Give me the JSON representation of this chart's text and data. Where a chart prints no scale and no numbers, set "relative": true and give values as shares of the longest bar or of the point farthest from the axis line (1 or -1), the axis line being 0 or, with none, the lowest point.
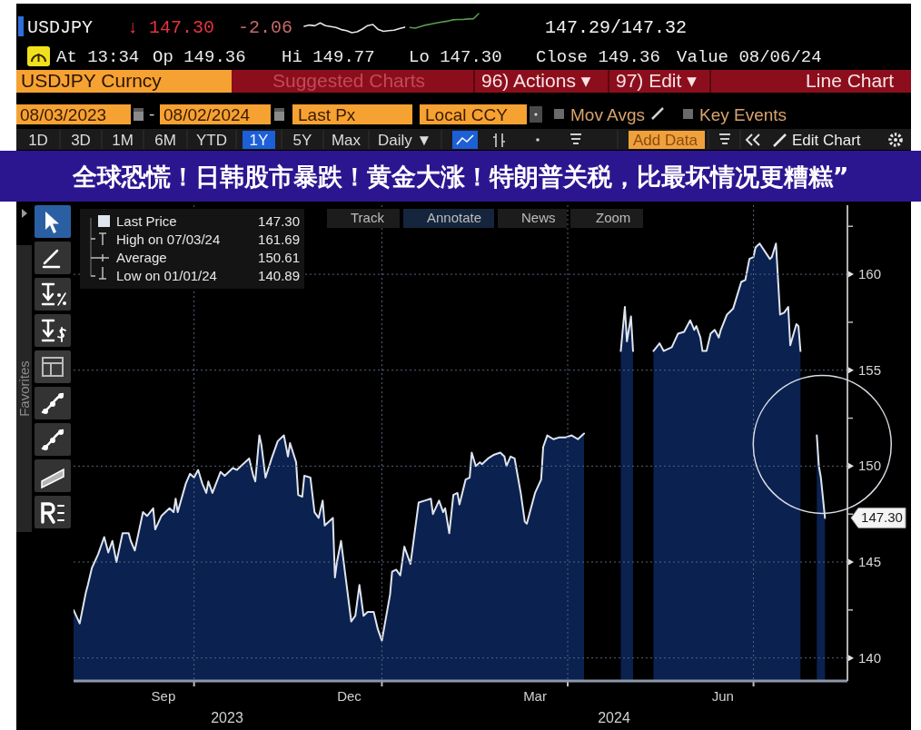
{
  "chart_data": [
    {
      "type": "area",
      "title": "全球恐慌！日韩股市暴跌！黄金大涨！特朗普关税，比最坏情况更糟糕”",
      "x": [
        "2023-08-03",
        "2023-08-06",
        "2023-08-09",
        "2023-08-10",
        "2023-08-12",
        "2023-08-15",
        "2023-08-18",
        "2023-08-20",
        "2023-08-22",
        "2023-08-24",
        "2023-08-27",
        "2023-08-30",
        "2023-08-31",
        "2023-09-02",
        "2023-09-06",
        "2023-09-08",
        "2023-09-11",
        "2023-09-12",
        "2023-09-15",
        "2023-09-19",
        "2023-09-21",
        "2023-09-22",
        "2023-09-23",
        "2023-09-27",
        "2023-09-29",
        "2023-10-01",
        "2023-10-03",
        "2023-10-05",
        "2023-10-07",
        "2023-10-08",
        "2023-10-10",
        "2023-10-14",
        "2023-10-16",
        "2023-10-20",
        "2023-10-22",
        "2023-10-24",
        "2023-10-28",
        "2023-10-30",
        "2023-10-31",
        "2023-11-02",
        "2023-11-03",
        "2023-11-05",
        "2023-11-08",
        "2023-11-11",
        "2023-11-14",
        "2023-11-16",
        "2023-11-17",
        "2023-11-20",
        "2023-11-21",
        "2023-11-23",
        "2023-11-24",
        "2023-11-27",
        "2023-11-29",
        "2023-12-01",
        "2023-12-03",
        "2023-12-04",
        "2023-12-08",
        "2023-12-09",
        "2023-12-10",
        "2023-12-12",
        "2023-12-14",
        "2023-12-17",
        "2023-12-19",
        "2023-12-21",
        "2023-12-23",
        "2023-12-25",
        "2023-12-28",
        "2023-12-30",
        "2024-01-01",
        "2024-01-05",
        "2024-01-06",
        "2024-01-08",
        "2024-01-10",
        "2024-01-12",
        "2024-01-15",
        "2024-01-19",
        "2024-01-22",
        "2024-01-25",
        "2024-01-26",
        "2024-01-29",
        "2024-01-31",
        "2024-02-01",
        "2024-02-03",
        "2024-02-05",
        "2024-02-07",
        "2024-02-08",
        "2024-02-11",
        "2024-02-13",
        "2024-02-14",
        "2024-02-16",
        "2024-02-18",
        "2024-02-19",
        "2024-02-22",
        "2024-02-25",
        "2024-02-28",
        "2024-03-01",
        "2024-03-02",
        "2024-03-04",
        "2024-03-06",
        "2024-03-09",
        "2024-03-11",
        "2024-03-12",
        "2024-03-14",
        "2024-03-16",
        "2024-03-19",
        "2024-03-20",
        "2024-03-22",
        "2024-03-25",
        "2024-03-28",
        "2024-03-31",
        "2024-04-03",
        "2024-04-06",
        "2024-04-09",
        "2024-04-18",
        "2024-04-27",
        "2024-04-29",
        "2024-04-30",
        "2024-05-02",
        "2024-05-03",
        "2024-05-08",
        "2024-05-13",
        "2024-05-16",
        "2024-05-18",
        "2024-05-22",
        "2024-05-25",
        "2024-05-28",
        "2024-05-31",
        "2024-06-02",
        "2024-06-03",
        "2024-06-05",
        "2024-06-06",
        "2024-06-08",
        "2024-06-10",
        "2024-06-12",
        "2024-06-14",
        "2024-06-15",
        "2024-06-18",
        "2024-06-21",
        "2024-06-25",
        "2024-06-27",
        "2024-06-29",
        "2024-07-01",
        "2024-07-02",
        "2024-07-04",
        "2024-07-09",
        "2024-07-10",
        "2024-07-12",
        "2024-07-14",
        "2024-07-16",
        "2024-07-18",
        "2024-07-19",
        "2024-07-22",
        "2024-07-23",
        "2024-07-24",
        "2024-07-28",
        "2024-08-01",
        "2024-08-02",
        "2024-08-03",
        "2024-08-05"
      ],
      "series": [
        {
          "name": "Last Price",
          "color": "#dfe5ee",
          "values": [
            142.5,
            141.8,
            143.4,
            143.8,
            144.7,
            145.4,
            146.3,
            145.5,
            146.1,
            145.0,
            146.5,
            146.5,
            146.1,
            145.6,
            147.6,
            147.4,
            147.8,
            146.7,
            147.4,
            147.8,
            147.6,
            148.3,
            147.6,
            149.1,
            149.6,
            149.4,
            149.8,
            149.1,
            148.6,
            149.2,
            148.6,
            149.7,
            149.5,
            149.9,
            149.8,
            150.0,
            150.4,
            149.5,
            149.2,
            151.6,
            151.1,
            149.4,
            150.4,
            151.3,
            151.6,
            150.5,
            151.2,
            150.2,
            148.5,
            148.4,
            149.5,
            149.4,
            147.6,
            147.3,
            148.2,
            146.9,
            147.3,
            144.2,
            145.0,
            146.1,
            144.4,
            141.9,
            142.2,
            143.8,
            142.2,
            142.4,
            142.4,
            141.5,
            140.9,
            143.3,
            144.5,
            144.6,
            144.3,
            145.8,
            144.9,
            148.1,
            148.2,
            148.3,
            147.5,
            148.2,
            147.6,
            147.8,
            146.5,
            148.5,
            148.6,
            148.0,
            149.3,
            149.4,
            150.7,
            150.0,
            150.2,
            150.1,
            150.4,
            150.6,
            150.7,
            150.5,
            150.0,
            150.5,
            150.4,
            148.6,
            147.1,
            147.0,
            147.8,
            148.6,
            149.3,
            151.0,
            151.6,
            151.4,
            151.5,
            151.5,
            151.6,
            151.4,
            151.7,
            null,
            156.0,
            158.3,
            156.5,
            157.8,
            156.0,
            null,
            156.0,
            156.4,
            156.0,
            156.2,
            156.9,
            157.0,
            157.6,
            157.1,
            157.3,
            156.7,
            156.0,
            156.0,
            156.9,
            157.1,
            156.7,
            157.1,
            157.9,
            158.2,
            159.6,
            159.7,
            160.8,
            160.9,
            161.4,
            161.6,
            160.8,
            160.9,
            161.6,
            157.9,
            158.0,
            158.3,
            156.3,
            157.4,
            157.3,
            156.0,
            null,
            151.6,
            150.0,
            149.4,
            147.3
          ]
        }
      ],
      "xlim": [
        "2023-08-03",
        "2024-08-16"
      ],
      "ylim": [
        138.8,
        163.6
      ],
      "xticks": [
        {
          "value": "2023-09-16",
          "label": "Sep"
        },
        {
          "value": "2023-10-01",
          "label": null
        },
        {
          "value": "2023-12-16",
          "label": "Dec"
        },
        {
          "value": "2024-01-01",
          "label": null
        },
        {
          "value": "2024-03-16",
          "label": "Mar"
        },
        {
          "value": "2024-04-01",
          "label": null
        },
        {
          "value": "2024-06-16",
          "label": "Jun"
        },
        {
          "value": "2024-07-01",
          "label": null
        }
      ],
      "yticks": [
        140,
        {
          "value": 142.5,
          "label": null
        },
        145,
        {
          "value": 147.5,
          "label": null
        },
        150,
        {
          "value": 152.5,
          "label": null
        },
        155,
        {
          "value": 157.5,
          "label": null
        },
        160,
        {
          "value": 162.5,
          "label": null
        }
      ],
      "grid": true,
      "legend": "top left",
      "annotations": [
        "USDJPY",
        "↓ 147.30",
        "-2.06",
        "147.29/147.32",
        "At 13:34",
        "Op 149.36",
        "Hi 149.77",
        "Lo 147.30",
        "Close 149.36",
        "Value 08/06/24",
        "USDJPY Curncy",
        "Suggested Charts",
        "96) Actions ▾",
        "97) Edit ▾",
        "Line Chart",
        "08/03/2023",
        "-",
        "08/02/2024",
        "Last Px",
        "Local CCY",
        "Mov Avgs",
        "Key Events",
        "1D",
        "3D",
        "1M",
        "6M",
        "YTD",
        "1Y",
        "5Y",
        "Max",
        "Daily ▼",
        "Add Data",
        "Edit Chart",
        "Track",
        "Annotate",
        "News",
        "Zoom",
        "Favorites",
        "147.30",
        "High on 07/03/24",
        "161.69",
        "Average",
        "150.61",
        "Low on 01/01/24",
        "140.89",
        "147.30",
        "2023",
        "2024"
      ]
    },
    {
      "type": "line",
      "relative": true,
      "categories": [
        null,
        null,
        null,
        null,
        null,
        null,
        null,
        null,
        null,
        null,
        null,
        null,
        null,
        null,
        null,
        null,
        null,
        null,
        null,
        null,
        null,
        null,
        null,
        null,
        null,
        null,
        null,
        null,
        null,
        null,
        null,
        null,
        null,
        null
      ],
      "series": [
        {
          "color": "#e6e6e6",
          "values": [
            0.33,
            0.4,
            0.36,
            0.51,
            0.37,
            0.32,
            0.27,
            0.16,
            0.11,
            0,
            0.05,
            0.19,
            0.37,
            0.43,
            0.16,
            0.07,
            0.11,
            0.13,
            0.21,
            0.29,
            null,
            null,
            null,
            null,
            null,
            null,
            null,
            null,
            null,
            null,
            null,
            null,
            null,
            null
          ]
        },
        {
          "color": "#55a04a",
          "values": [
            null,
            null,
            null,
            null,
            null,
            null,
            null,
            null,
            null,
            null,
            null,
            null,
            null,
            null,
            null,
            null,
            null,
            null,
            null,
            null,
            0.27,
            0.24,
            0.32,
            0.4,
            0.45,
            0.51,
            0.56,
            0.6,
            0.67,
            0.69,
            0.69,
            0.72,
            0.73,
            1
          ]
        }
      ]
    }
  ]
}
